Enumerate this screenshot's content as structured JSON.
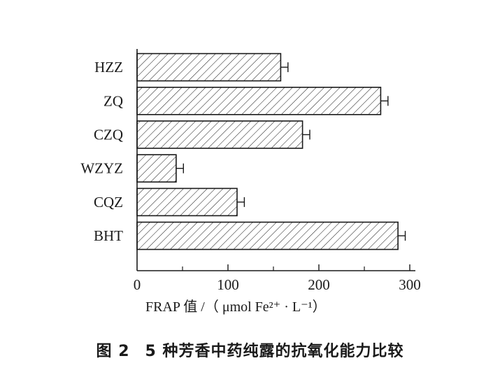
{
  "chart_data": {
    "type": "bar",
    "orientation": "horizontal",
    "categories": [
      "HZZ",
      "ZQ",
      "CZQ",
      "WZYZ",
      "CQZ",
      "BHT"
    ],
    "values": [
      158,
      268,
      182,
      43,
      110,
      287
    ],
    "errors": [
      8,
      8,
      8,
      8,
      8,
      8
    ],
    "xlim": [
      0,
      300
    ],
    "xticks": [
      0,
      100,
      200,
      300
    ],
    "xlabel": "FRAP 值 /（ μmol Fe²⁺ · L⁻¹）",
    "bar_fill": "hatched",
    "bar_color": "#1a1a1a",
    "grid": false
  },
  "caption": {
    "number": "图 2",
    "text": "5 种芳香中药纯露的抗氧化能力比较"
  }
}
